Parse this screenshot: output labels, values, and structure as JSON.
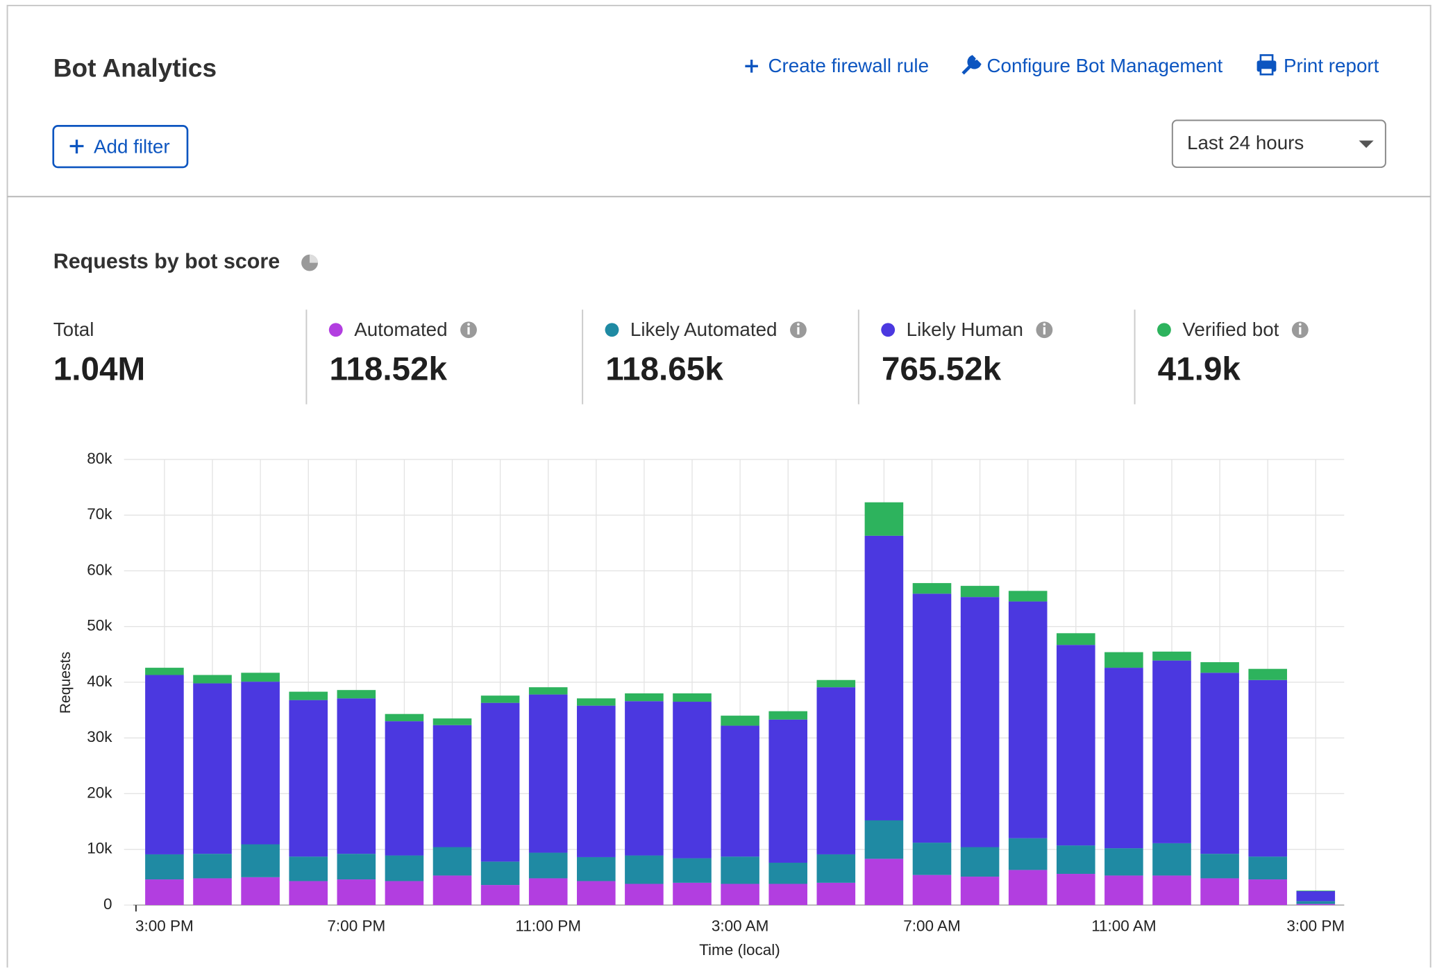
{
  "header": {
    "title": "Bot Analytics",
    "actions": [
      "Create firewall rule",
      "Configure Bot Management",
      "Print report"
    ],
    "add_filter": "Add filter",
    "time_range": "Last 24 hours"
  },
  "section_title": "Requests by bot score",
  "summary": [
    {
      "label": "Total",
      "value": "1.04M"
    },
    {
      "label": "Automated",
      "value": "118.52k"
    },
    {
      "label": "Likely Automated",
      "value": "118.65k"
    },
    {
      "label": "Likely Human",
      "value": "765.52k"
    },
    {
      "label": "Verified bot",
      "value": "41.9k"
    }
  ],
  "chart_data": {
    "type": "bar",
    "stacked": true,
    "x_label": "Time (local)",
    "y_label": "Requests",
    "categories": [
      "3:00 PM",
      null,
      null,
      null,
      "7:00 PM",
      null,
      null,
      null,
      "11:00 PM",
      null,
      null,
      null,
      "3:00 AM",
      null,
      null,
      null,
      "7:00 AM",
      null,
      null,
      null,
      "11:00 AM",
      null,
      null,
      null,
      "3:00 PM"
    ],
    "series": [
      {
        "name": "Automated",
        "color": "#b23ee0",
        "values": [
          4600,
          4800,
          5000,
          4300,
          4600,
          4300,
          5300,
          3600,
          4800,
          4300,
          3800,
          4000,
          3800,
          3800,
          4000,
          8300,
          5400,
          5100,
          6300,
          5600,
          5300,
          5300,
          4800,
          4600,
          200
        ]
      },
      {
        "name": "Likely Automated",
        "color": "#1f8aa3",
        "values": [
          4500,
          4400,
          5900,
          4400,
          4600,
          4600,
          5100,
          4200,
          4600,
          4300,
          5100,
          4400,
          4900,
          3800,
          5100,
          6900,
          5800,
          5300,
          5700,
          5100,
          4900,
          5800,
          4400,
          4100,
          500
        ]
      },
      {
        "name": "Likely Human",
        "color": "#4b38e0",
        "values": [
          32200,
          30600,
          29200,
          28100,
          27900,
          24100,
          21900,
          28500,
          28400,
          27200,
          27700,
          28100,
          23500,
          25700,
          30000,
          51100,
          44700,
          44900,
          42500,
          36000,
          32400,
          32800,
          32500,
          31700,
          1800
        ]
      },
      {
        "name": "Verified bot",
        "color": "#2db35d",
        "values": [
          1300,
          1500,
          1600,
          1500,
          1500,
          1300,
          1200,
          1300,
          1300,
          1300,
          1400,
          1500,
          1800,
          1500,
          1300,
          6000,
          1900,
          2000,
          1900,
          2100,
          2800,
          1600,
          1900,
          2000,
          100
        ]
      }
    ],
    "ylim": [
      0,
      80000
    ],
    "yticks": [
      0,
      {
        "value": 10000,
        "label": "10k"
      },
      {
        "value": 20000,
        "label": "20k"
      },
      {
        "value": 30000,
        "label": "30k"
      },
      {
        "value": 40000,
        "label": "40k"
      },
      {
        "value": 50000,
        "label": "50k"
      },
      {
        "value": 60000,
        "label": "60k"
      },
      {
        "value": 70000,
        "label": "70k"
      },
      {
        "value": 80000,
        "label": "80k"
      }
    ],
    "grid": true
  }
}
